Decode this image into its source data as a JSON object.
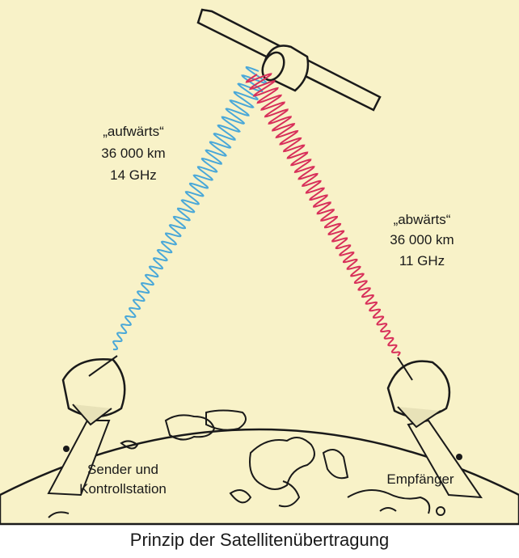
{
  "diagram": {
    "uplink": {
      "label": [
        "„aufwärts“",
        "36 000 km",
        "14 GHz"
      ]
    },
    "downlink": {
      "label": [
        "„abwärts“",
        "36 000 km",
        "11 GHz"
      ]
    },
    "stations": [
      {
        "label": [
          "Sender und",
          "Kontrollstation"
        ]
      },
      {
        "label": [
          "Empfänger"
        ]
      }
    ]
  },
  "caption": "Prinzip der Satellitenübertragung"
}
